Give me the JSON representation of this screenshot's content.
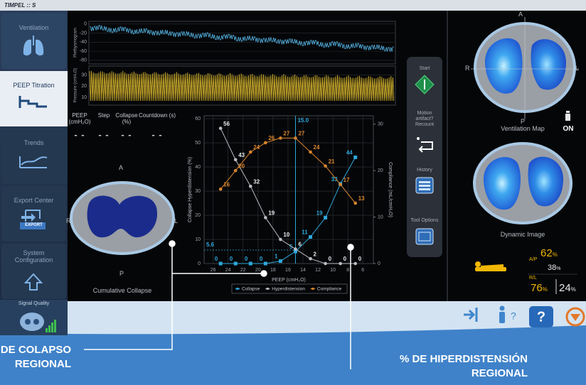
{
  "header": {
    "title": "TIMPEL :: S"
  },
  "sidebar": [
    {
      "label": "Ventilation"
    },
    {
      "label": "PEEP Titration"
    },
    {
      "label": "Trends"
    },
    {
      "label": "Export Center",
      "badge": "EXPORT"
    },
    {
      "label": "System Configuration"
    },
    {
      "label": "Signal Quality"
    }
  ],
  "waveforms": {
    "pleth": {
      "label": "Plethysmogram",
      "ylim": [
        -88,
        6
      ],
      "yticks": [
        0,
        -20,
        -40,
        -60,
        -80
      ]
    },
    "pressure": {
      "label": "Pressure (cmH₂O)",
      "ylim": [
        3,
        38
      ],
      "yticks": [
        30,
        20,
        10
      ]
    }
  },
  "status": [
    {
      "label": "PEEP (cmH₂O)",
      "value": "- -"
    },
    {
      "label": "Step",
      "value": "- -"
    },
    {
      "label": "Collapse (%)",
      "value": "- -"
    },
    {
      "label": "Countdown (s)",
      "value": "- -"
    }
  ],
  "cumulative": {
    "anterior": "A",
    "right": "R",
    "left": "L",
    "posterior": "P",
    "caption": "Cumulative Collapse"
  },
  "chart": {
    "type": "line",
    "x_label": "PEEP (cmH₂O)",
    "y_label": "Collapse  Hyperdistension (%)",
    "y2_label": "Compliance (mL/cmH₂O)",
    "x": [
      25,
      23,
      21,
      19,
      17,
      15,
      13,
      11,
      9,
      7
    ],
    "xlim": [
      27.2,
      4.6
    ],
    "xticks": [
      26,
      24,
      22,
      20,
      18,
      16,
      14,
      12,
      10,
      8,
      6
    ],
    "ylim": [
      0,
      61.2
    ],
    "yticks": [
      0,
      10,
      20,
      30,
      40,
      50,
      60
    ],
    "y2lim": [
      0,
      31.8
    ],
    "y2ticks": [
      0,
      10,
      20,
      30
    ],
    "grid": true,
    "series": [
      {
        "name": "Collapse",
        "color": "#2ea8dc",
        "marker": "square",
        "values": [
          0,
          0,
          0,
          0,
          1,
          5,
          11,
          19,
          33,
          44
        ]
      },
      {
        "name": "Hyperdistension",
        "color": "#b9bdc4",
        "marker": "circle",
        "values": [
          56,
          43,
          32,
          19,
          10,
          6,
          2,
          0,
          0,
          0
        ]
      },
      {
        "name": "Compliance",
        "color": "#d8852e",
        "marker": "circle",
        "axis": "y2",
        "values": [
          16,
          20,
          24,
          26,
          27,
          27,
          24,
          21,
          17,
          13
        ]
      }
    ],
    "reference": {
      "x": {
        "value": 15,
        "label": "15.0"
      },
      "y": 5.6
    }
  },
  "tools": [
    {
      "label": "Start"
    },
    {
      "label": "Motion artifact? Recount"
    },
    {
      "label": "History"
    },
    {
      "label": "Tool Options"
    }
  ],
  "ventilation_map": {
    "anterior": "A",
    "right": "R",
    "left": "L",
    "posterior": "P",
    "caption": "Ventilation Map",
    "status": "ON"
  },
  "dynamic_image": {
    "caption": "Dynamic Image"
  },
  "ratios": [
    {
      "label": "A/P",
      "values": [
        {
          "value": 62,
          "unit": "%"
        },
        {
          "value": 38,
          "unit": "%"
        }
      ]
    },
    {
      "label": "R/L",
      "values": [
        {
          "value": 76,
          "unit": "%"
        },
        {
          "value": 24,
          "unit": "%"
        }
      ]
    }
  ],
  "callouts": [
    {
      "text": "DE COLAPSO REGIONAL"
    },
    {
      "text": "% DE HIPERDISTENSIÓN REGIONAL"
    }
  ]
}
